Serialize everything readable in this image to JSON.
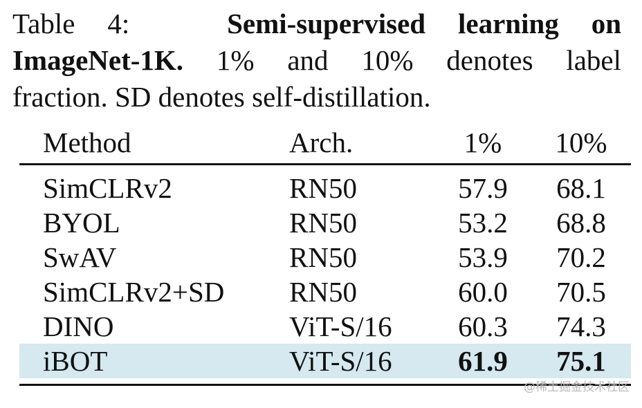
{
  "caption": {
    "line1_prefix": "Table 4:",
    "line1_bold": "Semi-supervised learning on",
    "line2_bold": "ImageNet-1K.",
    "line2_rest": "1% and 10% denotes label",
    "line3": "fraction. SD denotes self-distillation."
  },
  "table": {
    "headers": [
      "Method",
      "Arch.",
      "1%",
      "10%"
    ],
    "rows": [
      {
        "method": "SimCLRv2",
        "arch": "RN50",
        "p1": "57.9",
        "p10": "68.1"
      },
      {
        "method": "BYOL",
        "arch": "RN50",
        "p1": "53.2",
        "p10": "68.8"
      },
      {
        "method": "SwAV",
        "arch": "RN50",
        "p1": "53.9",
        "p10": "70.2"
      },
      {
        "method": "SimCLRv2+SD",
        "arch": "RN50",
        "p1": "60.0",
        "p10": "70.5"
      },
      {
        "method": "DINO",
        "arch": "ViT-S/16",
        "p1": "60.3",
        "p10": "74.3"
      },
      {
        "method": "iBOT",
        "arch": "ViT-S/16",
        "p1": "61.9",
        "p10": "75.1"
      }
    ],
    "highlight_color": "#d6e8f0"
  },
  "watermark": "@稀土掘金技术社区"
}
